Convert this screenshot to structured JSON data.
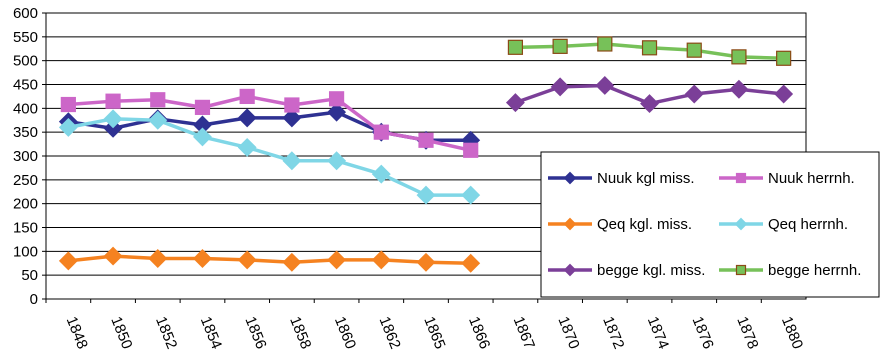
{
  "chart_data": {
    "type": "line",
    "title": "",
    "xlabel": "",
    "ylabel": "",
    "ylim": [
      0,
      600
    ],
    "yticks": [
      0,
      50,
      100,
      150,
      200,
      250,
      300,
      350,
      400,
      450,
      500,
      550,
      600
    ],
    "grid": "horizontal",
    "legend_position": "bottom-right",
    "categories": [
      "1848",
      "1850",
      "1852",
      "1854",
      "1856",
      "1858",
      "1860",
      "1862",
      "1865",
      "1866",
      "1867",
      "1870",
      "1872",
      "1874",
      "1876",
      "1878",
      "1880"
    ],
    "series": [
      {
        "name": "Nuuk kgl miss.",
        "color": "#2e3192",
        "marker": "diamond",
        "values": [
          372,
          358,
          378,
          365,
          380,
          380,
          392,
          350,
          333,
          333,
          null,
          null,
          null,
          null,
          null,
          null,
          null
        ]
      },
      {
        "name": "Nuuk herrnh.",
        "color": "#cc66c8",
        "marker": "square",
        "values": [
          408,
          415,
          418,
          402,
          425,
          407,
          420,
          350,
          333,
          312,
          null,
          null,
          null,
          null,
          null,
          null,
          null
        ]
      },
      {
        "name": "Qeq kgl. miss.",
        "color": "#f58220",
        "marker": "diamond",
        "values": [
          80,
          90,
          85,
          85,
          82,
          77,
          82,
          82,
          77,
          75,
          null,
          null,
          null,
          null,
          null,
          null,
          null
        ]
      },
      {
        "name": "Qeq herrnh.",
        "color": "#7fd6e6",
        "marker": "diamond",
        "values": [
          360,
          378,
          375,
          340,
          318,
          290,
          290,
          262,
          218,
          218,
          null,
          null,
          null,
          null,
          null,
          null,
          null
        ]
      },
      {
        "name": "begge kgl. miss.",
        "color": "#7b3f98",
        "marker": "diamond",
        "values": [
          null,
          null,
          null,
          null,
          null,
          null,
          null,
          null,
          null,
          null,
          412,
          445,
          448,
          410,
          430,
          440,
          430
        ]
      },
      {
        "name": "begge herrnh.",
        "color": "#77c159",
        "markerFill": "#77c159",
        "markerStroke": "#8b4a16",
        "marker": "square",
        "values": [
          null,
          null,
          null,
          null,
          null,
          null,
          null,
          null,
          null,
          null,
          528,
          530,
          535,
          527,
          522,
          508,
          505
        ]
      }
    ]
  }
}
